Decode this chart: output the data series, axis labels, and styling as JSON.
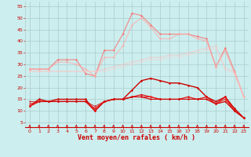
{
  "x": [
    0,
    1,
    2,
    3,
    4,
    5,
    6,
    7,
    8,
    9,
    10,
    11,
    12,
    13,
    14,
    15,
    16,
    17,
    18,
    19,
    20,
    21,
    22,
    23
  ],
  "series": [
    {
      "name": "rafales_max",
      "color": "#ff6666",
      "alpha": 0.7,
      "linewidth": 0.9,
      "markersize": 1.8,
      "y": [
        28,
        28,
        28,
        32,
        32,
        32,
        26,
        25,
        36,
        36,
        43,
        52,
        51,
        47,
        43,
        43,
        43,
        43,
        42,
        41,
        29,
        37,
        27,
        16
      ]
    },
    {
      "name": "rafales_moy",
      "color": "#ffaaaa",
      "alpha": 0.7,
      "linewidth": 0.9,
      "markersize": 1.8,
      "y": [
        28,
        28,
        28,
        31,
        31,
        30,
        28,
        25,
        33,
        33,
        38,
        47,
        50,
        46,
        41,
        41,
        43,
        43,
        41,
        40,
        29,
        36,
        26,
        16
      ]
    },
    {
      "name": "vent_trend1",
      "color": "#ffbbbb",
      "alpha": 0.55,
      "linewidth": 0.8,
      "markersize": 1.5,
      "y": [
        27,
        27,
        27,
        27,
        27,
        27,
        27,
        27,
        28,
        29,
        30,
        31,
        32,
        33,
        33,
        34,
        34,
        35,
        36,
        37,
        38,
        28,
        27,
        16
      ]
    },
    {
      "name": "vent_trend2",
      "color": "#ffcccc",
      "alpha": 0.5,
      "linewidth": 0.8,
      "markersize": 1.5,
      "y": [
        27,
        27,
        27,
        27,
        27,
        27,
        27,
        27,
        27,
        28,
        29,
        30,
        31,
        32,
        32,
        33,
        33,
        34,
        35,
        36,
        37,
        28,
        26,
        16
      ]
    },
    {
      "name": "vent_inst1",
      "color": "#cc0000",
      "alpha": 1.0,
      "linewidth": 1.0,
      "markersize": 1.8,
      "y": [
        12,
        15,
        14,
        15,
        15,
        15,
        15,
        10,
        14,
        15,
        15,
        19,
        23,
        24,
        23,
        22,
        22,
        21,
        20,
        16,
        14,
        16,
        11,
        7
      ]
    },
    {
      "name": "vent_inst2",
      "color": "#dd1111",
      "alpha": 1.0,
      "linewidth": 0.9,
      "markersize": 1.8,
      "y": [
        12,
        14,
        14,
        14,
        14,
        14,
        14,
        10,
        14,
        15,
        15,
        16,
        17,
        16,
        15,
        15,
        15,
        16,
        15,
        16,
        13,
        16,
        10,
        7
      ]
    },
    {
      "name": "vent_inst3",
      "color": "#ee2222",
      "alpha": 1.0,
      "linewidth": 0.8,
      "markersize": 1.5,
      "y": [
        12,
        14,
        14,
        14,
        14,
        14,
        14,
        11,
        14,
        15,
        15,
        16,
        16,
        16,
        15,
        15,
        15,
        15,
        15,
        15,
        13,
        15,
        10,
        7
      ]
    },
    {
      "name": "vent_inst4",
      "color": "#dd2222",
      "alpha": 0.9,
      "linewidth": 0.8,
      "markersize": 1.5,
      "y": [
        13,
        14,
        14,
        14,
        14,
        14,
        14,
        11,
        14,
        15,
        15,
        16,
        16,
        15,
        15,
        15,
        15,
        15,
        15,
        15,
        13,
        14,
        10,
        7
      ]
    },
    {
      "name": "vent_inst5",
      "color": "#cc0000",
      "alpha": 0.75,
      "linewidth": 0.7,
      "markersize": 1.5,
      "y": [
        14,
        14,
        14,
        14,
        14,
        14,
        14,
        12,
        14,
        15,
        15,
        16,
        16,
        15,
        15,
        15,
        15,
        15,
        15,
        15,
        13,
        14,
        10,
        7
      ]
    }
  ],
  "xlabel": "Vent moyen/en rafales ( km/h )",
  "xlabel_color": "#cc0000",
  "xlabel_fontsize": 6.0,
  "xlim": [
    -0.5,
    23.5
  ],
  "ylim": [
    3,
    57
  ],
  "yticks": [
    5,
    10,
    15,
    20,
    25,
    30,
    35,
    40,
    45,
    50,
    55
  ],
  "xticks": [
    0,
    1,
    2,
    3,
    4,
    5,
    6,
    7,
    8,
    9,
    10,
    11,
    12,
    13,
    14,
    15,
    16,
    17,
    18,
    19,
    20,
    21,
    22,
    23
  ],
  "bg_color": "#cceeee",
  "grid_color": "#aacccc",
  "tick_color": "#cc0000",
  "arrow_color": "#cc0000",
  "spine_color": "#cc0000"
}
